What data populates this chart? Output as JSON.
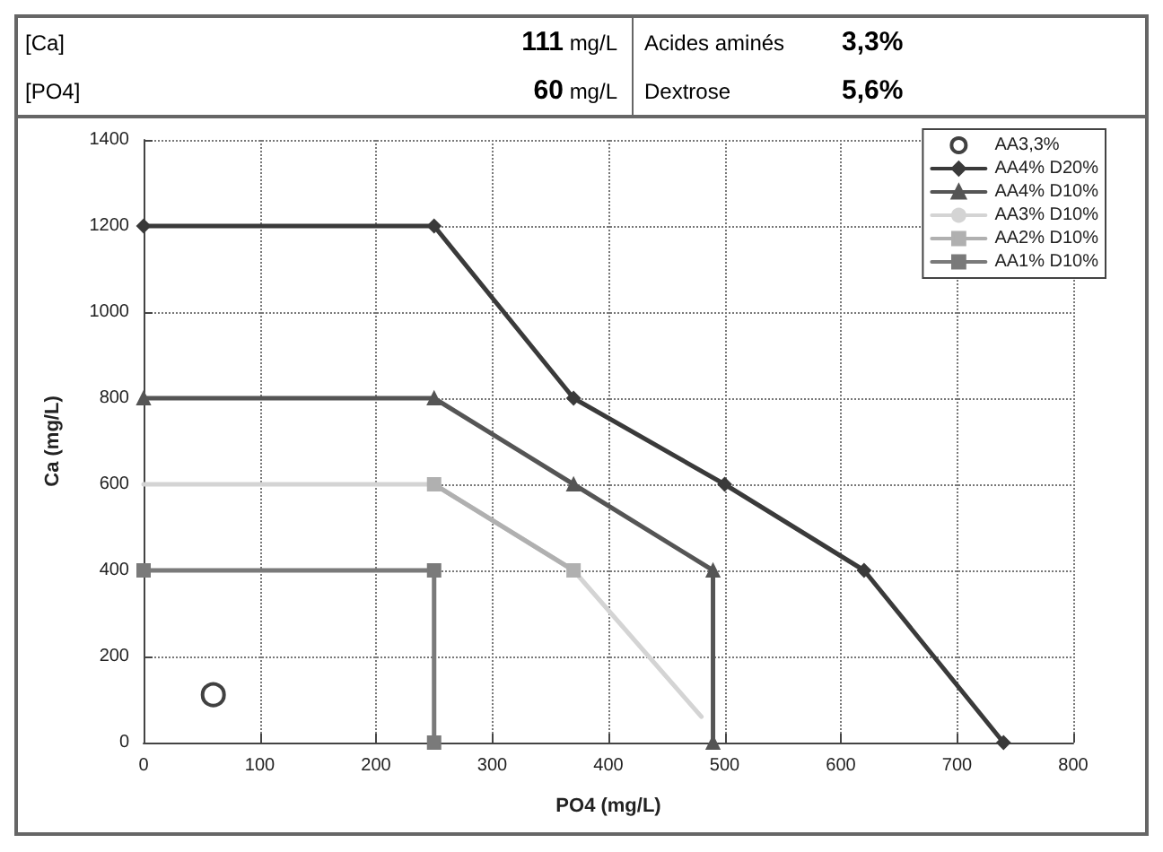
{
  "chart_data": [
    {
      "type": "other",
      "annotations": [
        "[Ca]",
        "111 mg/L",
        "Acides aminés",
        "3,3%",
        "[PO4]",
        "60 mg/L",
        "Dextrose",
        "5,6%"
      ]
    },
    {
      "type": "line",
      "xlabel": "PO4 (mg/L)",
      "ylabel": "Ca (mg/L)",
      "xlim": [
        0,
        800
      ],
      "xticks": [
        0,
        100,
        200,
        300,
        400,
        500,
        600,
        700,
        800
      ],
      "ylim": [
        0,
        1400
      ],
      "yticks": [
        0,
        200,
        400,
        600,
        800,
        1000,
        1200,
        1400
      ],
      "grid": true,
      "legend": "top right",
      "series": [
        {
          "name": "AA3,3%",
          "type": "scatter",
          "marker": "circle",
          "color": "#ffffff",
          "x": [
            60
          ],
          "values": [
            111
          ]
        },
        {
          "name": "AA4% D20%",
          "marker": "diamond",
          "color": "#3a3a3a",
          "x": [
            0,
            250,
            370,
            500,
            620,
            740
          ],
          "values": [
            1200,
            1200,
            800,
            600,
            400,
            0
          ]
        },
        {
          "name": "AA4% D10%",
          "marker": "triangle",
          "color": "#555555",
          "x": [
            0,
            250,
            370,
            490,
            490
          ],
          "values": [
            800,
            800,
            600,
            400,
            0
          ]
        },
        {
          "name": "AA3% D10%",
          "marker": "none",
          "color": "#d4d4d4",
          "x": [
            0,
            250,
            370,
            480
          ],
          "values": [
            600,
            600,
            400,
            60
          ]
        },
        {
          "name": "AA2% D10%",
          "marker": "square",
          "color": "#b0b0b0",
          "x": [
            250,
            370
          ],
          "values": [
            600,
            400
          ]
        },
        {
          "name": "AA1% D10%",
          "marker": "square",
          "color": "#7a7a7a",
          "x": [
            0,
            250,
            250
          ],
          "values": [
            400,
            400,
            0
          ]
        }
      ]
    }
  ]
}
